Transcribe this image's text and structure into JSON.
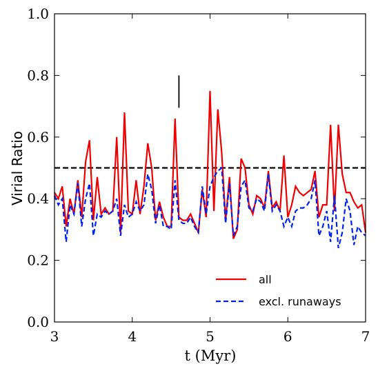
{
  "chart_data": {
    "type": "line",
    "xlabel": "t (Myr)",
    "ylabel": "Virial Ratio",
    "x": [
      3.0,
      3.05,
      3.1,
      3.15,
      3.2,
      3.25,
      3.3,
      3.35,
      3.4,
      3.45,
      3.5,
      3.55,
      3.6,
      3.65,
      3.7,
      3.75,
      3.8,
      3.85,
      3.9,
      3.95,
      4.0,
      4.05,
      4.1,
      4.15,
      4.2,
      4.25,
      4.3,
      4.35,
      4.4,
      4.45,
      4.5,
      4.55,
      4.6,
      4.65,
      4.7,
      4.75,
      4.8,
      4.85,
      4.9,
      4.95,
      5.0,
      5.05,
      5.1,
      5.15,
      5.2,
      5.25,
      5.3,
      5.35,
      5.4,
      5.45,
      5.5,
      5.55,
      5.6,
      5.65,
      5.7,
      5.75,
      5.8,
      5.85,
      5.9,
      5.95,
      6.0,
      6.05,
      6.1,
      6.15,
      6.2,
      6.25,
      6.3,
      6.35,
      6.4,
      6.45,
      6.5,
      6.55,
      6.6,
      6.65,
      6.7,
      6.75,
      6.8,
      6.85,
      6.9,
      6.95,
      7.0
    ],
    "series": [
      {
        "name": "all",
        "color": "#ee0000",
        "dash": false,
        "values": [
          0.42,
          0.4,
          0.44,
          0.31,
          0.4,
          0.35,
          0.46,
          0.34,
          0.52,
          0.59,
          0.33,
          0.47,
          0.35,
          0.37,
          0.35,
          0.36,
          0.6,
          0.29,
          0.68,
          0.36,
          0.35,
          0.46,
          0.35,
          0.44,
          0.58,
          0.5,
          0.33,
          0.39,
          0.34,
          0.31,
          0.31,
          0.66,
          0.34,
          0.33,
          0.33,
          0.35,
          0.32,
          0.29,
          0.43,
          0.34,
          0.75,
          0.36,
          0.69,
          0.55,
          0.33,
          0.47,
          0.27,
          0.3,
          0.53,
          0.5,
          0.38,
          0.35,
          0.41,
          0.4,
          0.37,
          0.49,
          0.37,
          0.39,
          0.36,
          0.54,
          0.34,
          0.38,
          0.44,
          0.42,
          0.41,
          0.42,
          0.43,
          0.49,
          0.34,
          0.38,
          0.38,
          0.64,
          0.36,
          0.64,
          0.48,
          0.42,
          0.42,
          0.39,
          0.37,
          0.38,
          0.29
        ]
      },
      {
        "name": "excl. runaways",
        "color": "#0022ee",
        "dash": true,
        "values": [
          0.41,
          0.38,
          0.4,
          0.26,
          0.38,
          0.35,
          0.45,
          0.31,
          0.4,
          0.45,
          0.28,
          0.35,
          0.34,
          0.36,
          0.35,
          0.36,
          0.4,
          0.28,
          0.38,
          0.34,
          0.35,
          0.39,
          0.36,
          0.38,
          0.48,
          0.43,
          0.32,
          0.38,
          0.31,
          0.31,
          0.3,
          0.46,
          0.33,
          0.32,
          0.32,
          0.34,
          0.31,
          0.29,
          0.44,
          0.35,
          0.44,
          0.47,
          0.49,
          0.5,
          0.32,
          0.45,
          0.28,
          0.31,
          0.44,
          0.46,
          0.37,
          0.36,
          0.4,
          0.39,
          0.36,
          0.48,
          0.36,
          0.38,
          0.36,
          0.31,
          0.34,
          0.31,
          0.36,
          0.37,
          0.37,
          0.38,
          0.4,
          0.46,
          0.28,
          0.31,
          0.36,
          0.26,
          0.41,
          0.24,
          0.29,
          0.4,
          0.36,
          0.25,
          0.31,
          0.29,
          0.28
        ]
      }
    ],
    "reference_line": {
      "y": 0.5,
      "color": "#000000"
    },
    "marker": {
      "x": 4.6,
      "y": [
        0.695,
        0.8
      ],
      "color": "#000000"
    },
    "xlim": [
      3,
      7
    ],
    "xticks": [
      3,
      4,
      5,
      6,
      7
    ],
    "ylim": [
      0,
      1
    ],
    "yticks": [
      {
        "value": 0,
        "label": "0.0"
      },
      {
        "value": 0.2,
        "label": "0.2"
      },
      {
        "value": 0.4,
        "label": "0.4"
      },
      {
        "value": 0.6,
        "label": "0.6"
      },
      {
        "value": 0.8,
        "label": "0.8"
      },
      {
        "value": 1,
        "label": "1.0"
      }
    ],
    "legend": "lower right",
    "grid": false
  }
}
